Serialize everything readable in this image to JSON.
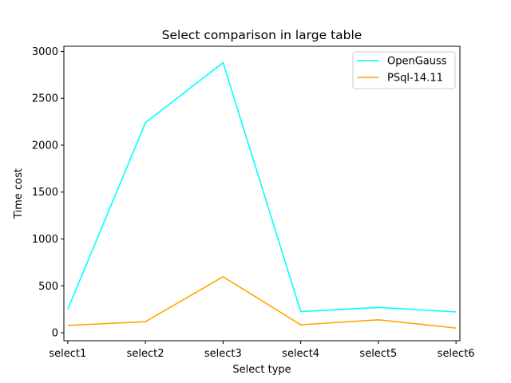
{
  "chart_data": {
    "type": "line",
    "title": "Select comparison in large table",
    "xlabel": "Select type",
    "ylabel": "Time cost",
    "categories": [
      "select1",
      "select2",
      "select3",
      "select4",
      "select5",
      "select6"
    ],
    "yticks": [
      0,
      500,
      1000,
      1500,
      2000,
      2500,
      3000
    ],
    "ylim": [
      -85,
      3055
    ],
    "grid": false,
    "legend_position": "top-right",
    "series": [
      {
        "name": "OpenGauss",
        "color": "#00ffff",
        "values": [
          250,
          2240,
          2880,
          225,
          270,
          222
        ]
      },
      {
        "name": "PSql-14.11",
        "color": "#ffa500",
        "values": [
          78,
          118,
          597,
          85,
          138,
          50
        ]
      }
    ]
  }
}
